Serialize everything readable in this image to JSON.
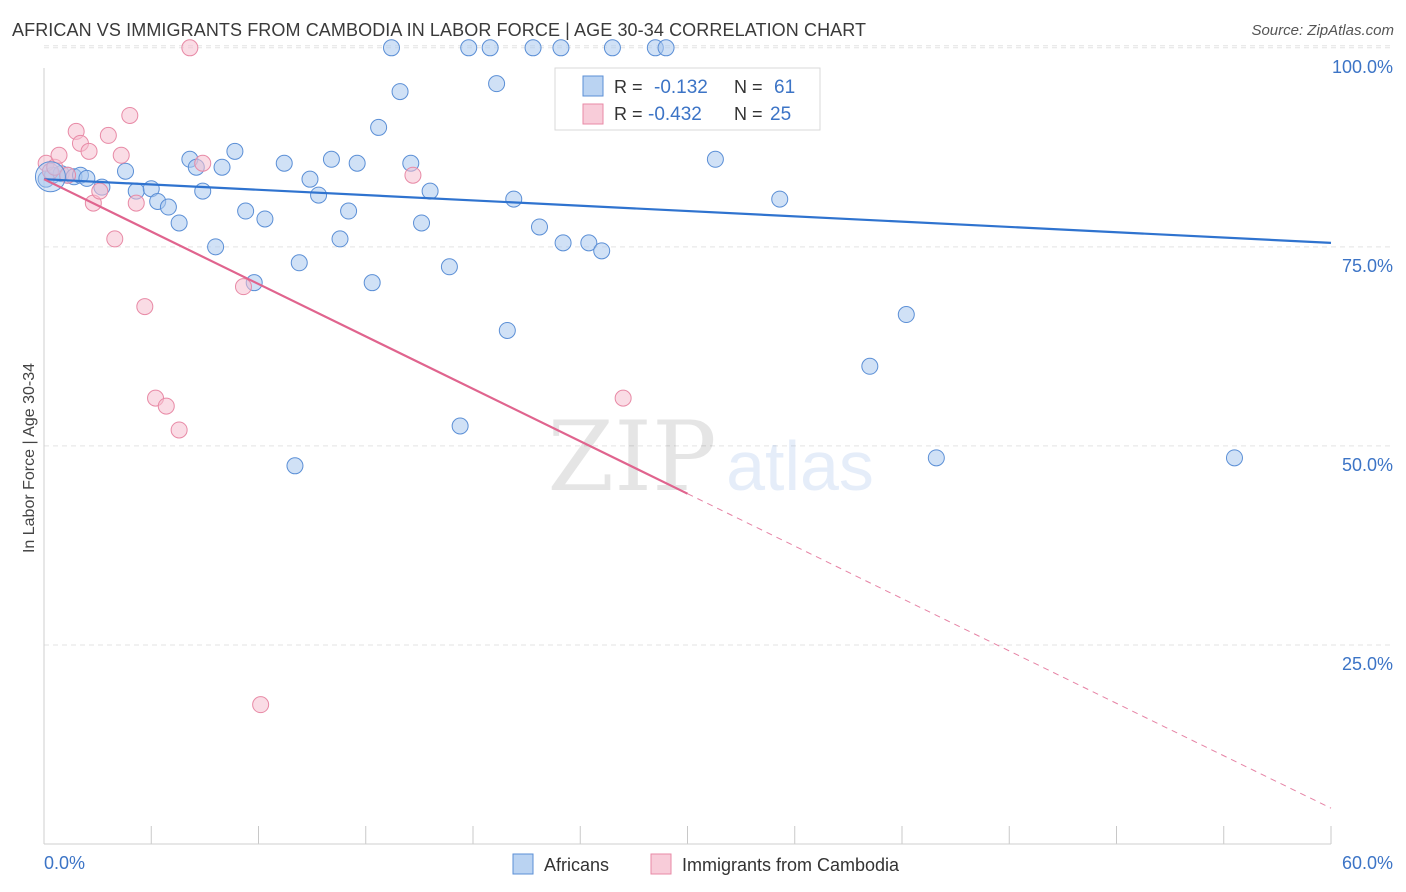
{
  "title": "AFRICAN VS IMMIGRANTS FROM CAMBODIA IN LABOR FORCE | AGE 30-34 CORRELATION CHART",
  "source": "Source: ZipAtlas.com",
  "colors": {
    "blue_fill": "#a9c8ef",
    "blue_stroke": "#5b8fd6",
    "blue_line": "#2f73cf",
    "pink_fill": "#f6bfd0",
    "pink_stroke": "#e88aa6",
    "pink_line": "#e0648e",
    "tick_text": "#3c74c6",
    "grid": "#e3e3e3"
  },
  "chart_data": {
    "type": "scatter",
    "xlabel": "",
    "ylabel": "In Labor Force | Age 30-34",
    "xlim": [
      0,
      60
    ],
    "ylim": [
      0,
      105
    ],
    "x_tick_labels": [
      "0.0%",
      "60.0%"
    ],
    "y_ticks": [
      25,
      50,
      75,
      100
    ],
    "y_tick_labels": [
      "25.0%",
      "50.0%",
      "75.0%",
      "100.0%"
    ],
    "grid": true,
    "watermark": {
      "left": "ZIP",
      "right": "atlas"
    },
    "legend_stats": [
      {
        "r_label": "R =",
        "r_value": "-0.132",
        "n_label": "N =",
        "n_value": "61"
      },
      {
        "r_label": "R =",
        "r_value": "-0.432",
        "n_label": "N =",
        "n_value": "25"
      }
    ],
    "series": [
      {
        "name": "Africans",
        "trend": {
          "x0": 0,
          "y0": 83.5,
          "x1": 60,
          "y1": 75.5,
          "dashed_from": null
        },
        "points": [
          [
            0.1,
            83.5
          ],
          [
            0.4,
            84.0
          ],
          [
            0.8,
            84.2
          ],
          [
            1.1,
            84.0
          ],
          [
            1.4,
            83.8
          ],
          [
            1.7,
            84.0
          ],
          [
            2.0,
            83.6
          ],
          [
            2.7,
            82.5
          ],
          [
            3.8,
            84.5
          ],
          [
            4.3,
            82.0
          ],
          [
            5.0,
            82.3
          ],
          [
            5.3,
            80.7
          ],
          [
            5.8,
            80.0
          ],
          [
            6.3,
            78.0
          ],
          [
            6.8,
            86.0
          ],
          [
            7.1,
            85.0
          ],
          [
            7.4,
            82.0
          ],
          [
            8.0,
            75.0
          ],
          [
            8.3,
            85.0
          ],
          [
            8.9,
            87.0
          ],
          [
            9.4,
            79.5
          ],
          [
            9.8,
            70.5
          ],
          [
            10.3,
            78.5
          ],
          [
            11.2,
            85.5
          ],
          [
            11.7,
            47.5
          ],
          [
            11.9,
            73.0
          ],
          [
            12.4,
            83.5
          ],
          [
            12.8,
            81.5
          ],
          [
            13.4,
            86.0
          ],
          [
            13.8,
            76.0
          ],
          [
            14.2,
            79.5
          ],
          [
            14.6,
            85.5
          ],
          [
            15.3,
            70.5
          ],
          [
            15.6,
            90.0
          ],
          [
            16.2,
            100.0
          ],
          [
            16.6,
            94.5
          ],
          [
            17.1,
            85.5
          ],
          [
            17.6,
            78.0
          ],
          [
            18.0,
            82.0
          ],
          [
            18.9,
            72.5
          ],
          [
            19.4,
            52.5
          ],
          [
            19.8,
            100.0
          ],
          [
            20.8,
            100.0
          ],
          [
            21.1,
            95.5
          ],
          [
            21.6,
            64.5
          ],
          [
            21.9,
            81.0
          ],
          [
            22.8,
            100.0
          ],
          [
            23.1,
            77.5
          ],
          [
            24.1,
            100.0
          ],
          [
            24.2,
            75.5
          ],
          [
            25.4,
            75.5
          ],
          [
            26.0,
            74.5
          ],
          [
            26.5,
            100.0
          ],
          [
            28.5,
            100.0
          ],
          [
            29.0,
            100.0
          ],
          [
            31.3,
            86.0
          ],
          [
            34.3,
            81.0
          ],
          [
            38.5,
            60.0
          ],
          [
            40.2,
            66.5
          ],
          [
            41.6,
            48.5
          ],
          [
            55.5,
            48.5
          ]
        ]
      },
      {
        "name": "Immigrants from Cambodia",
        "trend": {
          "x0": 0,
          "y0": 83.5,
          "x1": 60,
          "y1": 4.5,
          "dashed_from": 30
        },
        "points": [
          [
            0.1,
            85.5
          ],
          [
            0.3,
            84.5
          ],
          [
            0.5,
            85.0
          ],
          [
            0.7,
            86.5
          ],
          [
            1.1,
            84.0
          ],
          [
            1.5,
            89.5
          ],
          [
            1.7,
            88.0
          ],
          [
            2.1,
            87.0
          ],
          [
            2.3,
            80.5
          ],
          [
            2.6,
            82.0
          ],
          [
            3.0,
            89.0
          ],
          [
            3.3,
            76.0
          ],
          [
            3.6,
            86.5
          ],
          [
            4.0,
            91.5
          ],
          [
            4.3,
            80.5
          ],
          [
            4.7,
            67.5
          ],
          [
            5.2,
            56.0
          ],
          [
            5.7,
            55.0
          ],
          [
            6.3,
            52.0
          ],
          [
            6.8,
            100.0
          ],
          [
            7.4,
            85.5
          ],
          [
            9.3,
            70.0
          ],
          [
            10.1,
            17.5
          ],
          [
            17.2,
            84.0
          ],
          [
            27.0,
            56.0
          ]
        ]
      }
    ]
  }
}
